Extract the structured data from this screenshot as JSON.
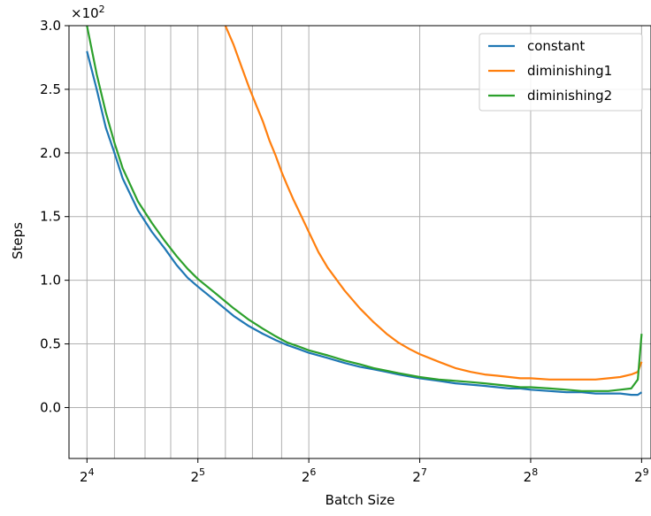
{
  "chart_data": {
    "type": "line",
    "xlabel": "Batch Size",
    "ylabel": "Steps",
    "y_multiplier": "×10",
    "y_multiplier_exp": "2",
    "xscale": "log2",
    "xlim": [
      14.3,
      543
    ],
    "ylim": [
      -0.4,
      3.0
    ],
    "grid": true,
    "legend_position": "top-right",
    "x_ticks": [
      {
        "value": 16,
        "base": "2",
        "exp": "4"
      },
      {
        "value": 32,
        "base": "2",
        "exp": "5"
      },
      {
        "value": 64,
        "base": "2",
        "exp": "6"
      },
      {
        "value": 128,
        "base": "2",
        "exp": "7"
      },
      {
        "value": 256,
        "base": "2",
        "exp": "8"
      },
      {
        "value": 512,
        "base": "2",
        "exp": "9"
      }
    ],
    "x_minor_grid": [
      19,
      23,
      27,
      38,
      45,
      54
    ],
    "y_ticks": [
      {
        "value": 0.0,
        "label": "0.0"
      },
      {
        "value": 0.5,
        "label": "0.5"
      },
      {
        "value": 1.0,
        "label": "1.0"
      },
      {
        "value": 1.5,
        "label": "1.5"
      },
      {
        "value": 2.0,
        "label": "2.0"
      },
      {
        "value": 2.5,
        "label": "2.5"
      },
      {
        "value": 3.0,
        "label": "3.0"
      }
    ],
    "series": [
      {
        "name": "constant",
        "color": "#1f77b4",
        "x": [
          16,
          17,
          18,
          19,
          20,
          22,
          24,
          26,
          28,
          30,
          32,
          36,
          40,
          44,
          48,
          52,
          56,
          60,
          64,
          72,
          80,
          88,
          96,
          104,
          112,
          128,
          144,
          160,
          176,
          192,
          208,
          224,
          240,
          256,
          288,
          320,
          352,
          384,
          416,
          448,
          480,
          500,
          512
        ],
        "y": [
          2.8,
          2.5,
          2.2,
          2.0,
          1.8,
          1.55,
          1.38,
          1.25,
          1.12,
          1.02,
          0.95,
          0.83,
          0.72,
          0.64,
          0.58,
          0.53,
          0.49,
          0.46,
          0.43,
          0.39,
          0.35,
          0.32,
          0.3,
          0.28,
          0.26,
          0.23,
          0.21,
          0.19,
          0.18,
          0.17,
          0.16,
          0.15,
          0.15,
          0.14,
          0.13,
          0.12,
          0.12,
          0.11,
          0.11,
          0.11,
          0.1,
          0.1,
          0.12
        ]
      },
      {
        "name": "diminishing1",
        "color": "#ff7f0e",
        "x": [
          38,
          40,
          42,
          44,
          46,
          48,
          50,
          52,
          54,
          56,
          58,
          60,
          64,
          68,
          72,
          80,
          88,
          96,
          104,
          112,
          120,
          128,
          144,
          160,
          176,
          192,
          208,
          224,
          240,
          256,
          288,
          320,
          352,
          384,
          416,
          448,
          480,
          500,
          512
        ],
        "y": [
          3.0,
          2.85,
          2.68,
          2.52,
          2.38,
          2.25,
          2.1,
          1.98,
          1.85,
          1.74,
          1.64,
          1.55,
          1.38,
          1.22,
          1.1,
          0.92,
          0.78,
          0.67,
          0.58,
          0.51,
          0.46,
          0.42,
          0.36,
          0.31,
          0.28,
          0.26,
          0.25,
          0.24,
          0.23,
          0.23,
          0.22,
          0.22,
          0.22,
          0.22,
          0.23,
          0.24,
          0.26,
          0.28,
          0.36
        ]
      },
      {
        "name": "diminishing2",
        "color": "#2ca02c",
        "x": [
          16,
          17,
          18,
          19,
          20,
          22,
          24,
          26,
          28,
          30,
          32,
          36,
          40,
          44,
          48,
          52,
          56,
          60,
          64,
          72,
          80,
          88,
          96,
          104,
          112,
          128,
          144,
          160,
          176,
          192,
          208,
          224,
          240,
          256,
          288,
          320,
          352,
          384,
          416,
          448,
          480,
          500,
          512
        ],
        "y": [
          3.0,
          2.62,
          2.32,
          2.08,
          1.88,
          1.62,
          1.45,
          1.31,
          1.19,
          1.09,
          1.01,
          0.89,
          0.78,
          0.69,
          0.62,
          0.56,
          0.51,
          0.48,
          0.45,
          0.41,
          0.37,
          0.34,
          0.31,
          0.29,
          0.27,
          0.24,
          0.22,
          0.21,
          0.2,
          0.19,
          0.18,
          0.17,
          0.16,
          0.16,
          0.15,
          0.14,
          0.13,
          0.13,
          0.13,
          0.14,
          0.15,
          0.22,
          0.58
        ]
      }
    ]
  }
}
